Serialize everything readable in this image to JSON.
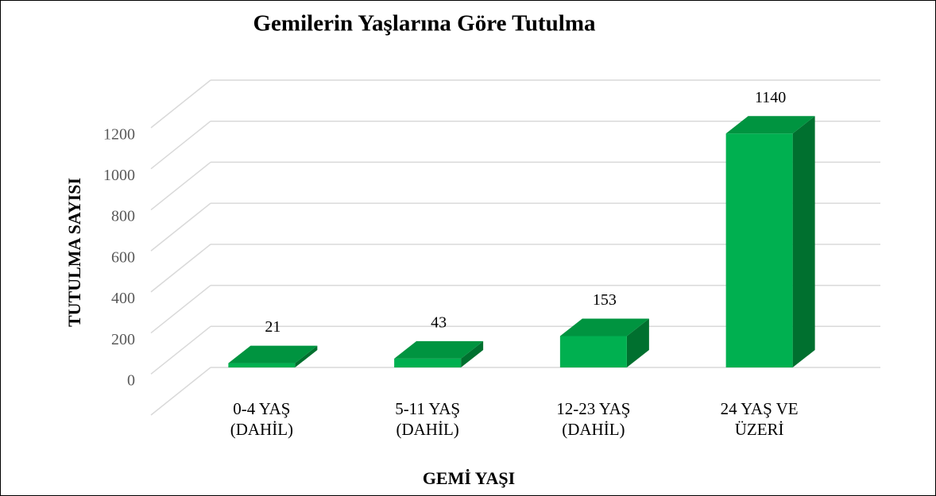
{
  "chart_data": {
    "type": "bar3d",
    "title": "Gemilerin Yaşlarına Göre Tutulma",
    "x_label": "GEMİ YAŞI",
    "y_label": "TUTULMA SAYISI",
    "categories": [
      "0-4 YAŞ (DAHİL)",
      "5-11 YAŞ (DAHİL)",
      "12-23 YAŞ (DAHİL)",
      "24 YAŞ VE ÜZERİ"
    ],
    "values": [
      21,
      43,
      153,
      1140
    ],
    "color": "#00b050",
    "ylim": [
      0,
      1400
    ],
    "yticks": [
      0,
      200,
      400,
      600,
      800,
      1000,
      1200
    ],
    "grid": true
  }
}
